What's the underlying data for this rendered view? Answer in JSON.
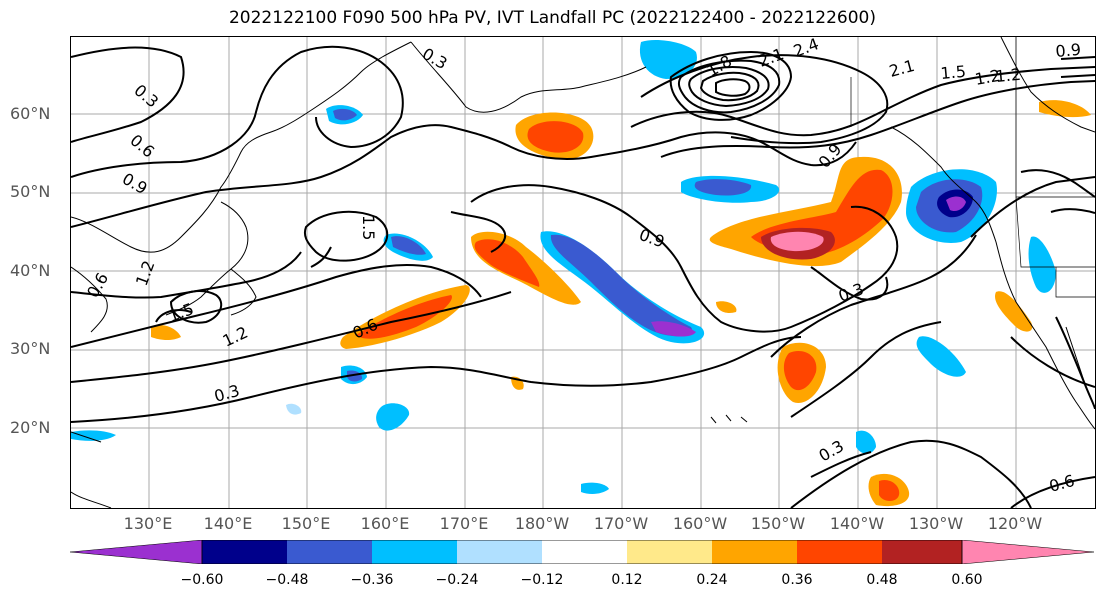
{
  "title": "2022122100 F090 500 hPa PV, IVT Landfall PC (2022122400 - 2022122600)",
  "lat_labels": [
    "60°N",
    "50°N",
    "40°N",
    "30°N",
    "20°N"
  ],
  "lon_labels": [
    "130°E",
    "140°E",
    "150°E",
    "160°E",
    "170°E",
    "180°W",
    "170°W",
    "160°W",
    "150°W",
    "140°W",
    "130°W",
    "120°W"
  ],
  "contour_labels": [
    "0.3",
    "0.6",
    "0.9",
    "1.2",
    "1.5",
    "1.8",
    "2.1",
    "2.4",
    "0.9",
    "0.3",
    "0.6",
    "1.2",
    "1.5",
    "0.9",
    "1.2",
    "0.3",
    "0.3",
    "0.3",
    "2.1",
    "1.5",
    "1.2",
    "0.9",
    "0.6",
    "0.6"
  ],
  "colorbar": {
    "ticks": [
      "−0.60",
      "−0.48",
      "−0.36",
      "−0.24",
      "−0.12",
      "0.12",
      "0.24",
      "0.36",
      "0.48",
      "0.60"
    ],
    "colors": [
      "#9b30d0",
      "#00008b",
      "#3a5ad0",
      "#00bfff",
      "#b0e0ff",
      "#ffffff",
      "#ffe98a",
      "#ffa500",
      "#ff4500",
      "#b22222",
      "#ff85b0"
    ]
  }
}
